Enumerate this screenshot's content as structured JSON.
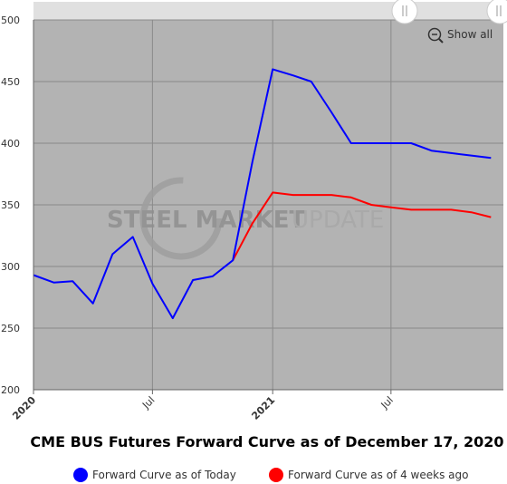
{
  "chart_data": {
    "type": "line",
    "title": "CME BUS Futures Forward Curve as of December 17, 2020",
    "ylim": [
      200,
      500
    ],
    "yticks": [
      200,
      250,
      300,
      350,
      400,
      450,
      500
    ],
    "xlim": [
      "2020-01-01",
      "2021-12-20"
    ],
    "xticks": [
      {
        "date": "2020-01-01",
        "label": "2020",
        "major": true
      },
      {
        "date": "2020-07-01",
        "label": "Jul",
        "major": false
      },
      {
        "date": "2021-01-01",
        "label": "2021",
        "major": true
      },
      {
        "date": "2021-07-01",
        "label": "Jul",
        "major": false
      }
    ],
    "grid": true,
    "legend_position": "bottom",
    "series": [
      {
        "name": "Forward Curve as of Today",
        "color": "#0000ff",
        "x": [
          "2020-01-01",
          "2020-02-01",
          "2020-03-01",
          "2020-04-01",
          "2020-05-01",
          "2020-06-01",
          "2020-07-01",
          "2020-08-01",
          "2020-09-01",
          "2020-10-01",
          "2020-11-01",
          "2020-12-01",
          "2021-01-01",
          "2021-02-01",
          "2021-03-01",
          "2021-04-01",
          "2021-05-01",
          "2021-06-01",
          "2021-07-01",
          "2021-08-01",
          "2021-09-01",
          "2021-10-01",
          "2021-11-01",
          "2021-12-01"
        ],
        "values": [
          293,
          287,
          288,
          270,
          310,
          324,
          286,
          258,
          289,
          292,
          305,
          385,
          460,
          455,
          450,
          425,
          400,
          400,
          400,
          400,
          394,
          392,
          390,
          388
        ]
      },
      {
        "name": "Forward Curve as of 4 weeks ago",
        "color": "#ff0000",
        "x": [
          "2020-11-01",
          "2020-12-01",
          "2021-01-01",
          "2021-02-01",
          "2021-03-01",
          "2021-04-01",
          "2021-05-01",
          "2021-06-01",
          "2021-07-01",
          "2021-08-01",
          "2021-09-01",
          "2021-10-01",
          "2021-11-01",
          "2021-12-01"
        ],
        "values": [
          305,
          335,
          360,
          358,
          358,
          358,
          356,
          350,
          348,
          346,
          346,
          346,
          344,
          340
        ]
      }
    ]
  },
  "watermark": {
    "bold": "STEEL MARKET",
    "light": "UPDATE"
  },
  "show_all_label": "Show all",
  "colors": {
    "plot_bg": "#b3b3b3",
    "navigator_bg": "#e0e0e0"
  }
}
